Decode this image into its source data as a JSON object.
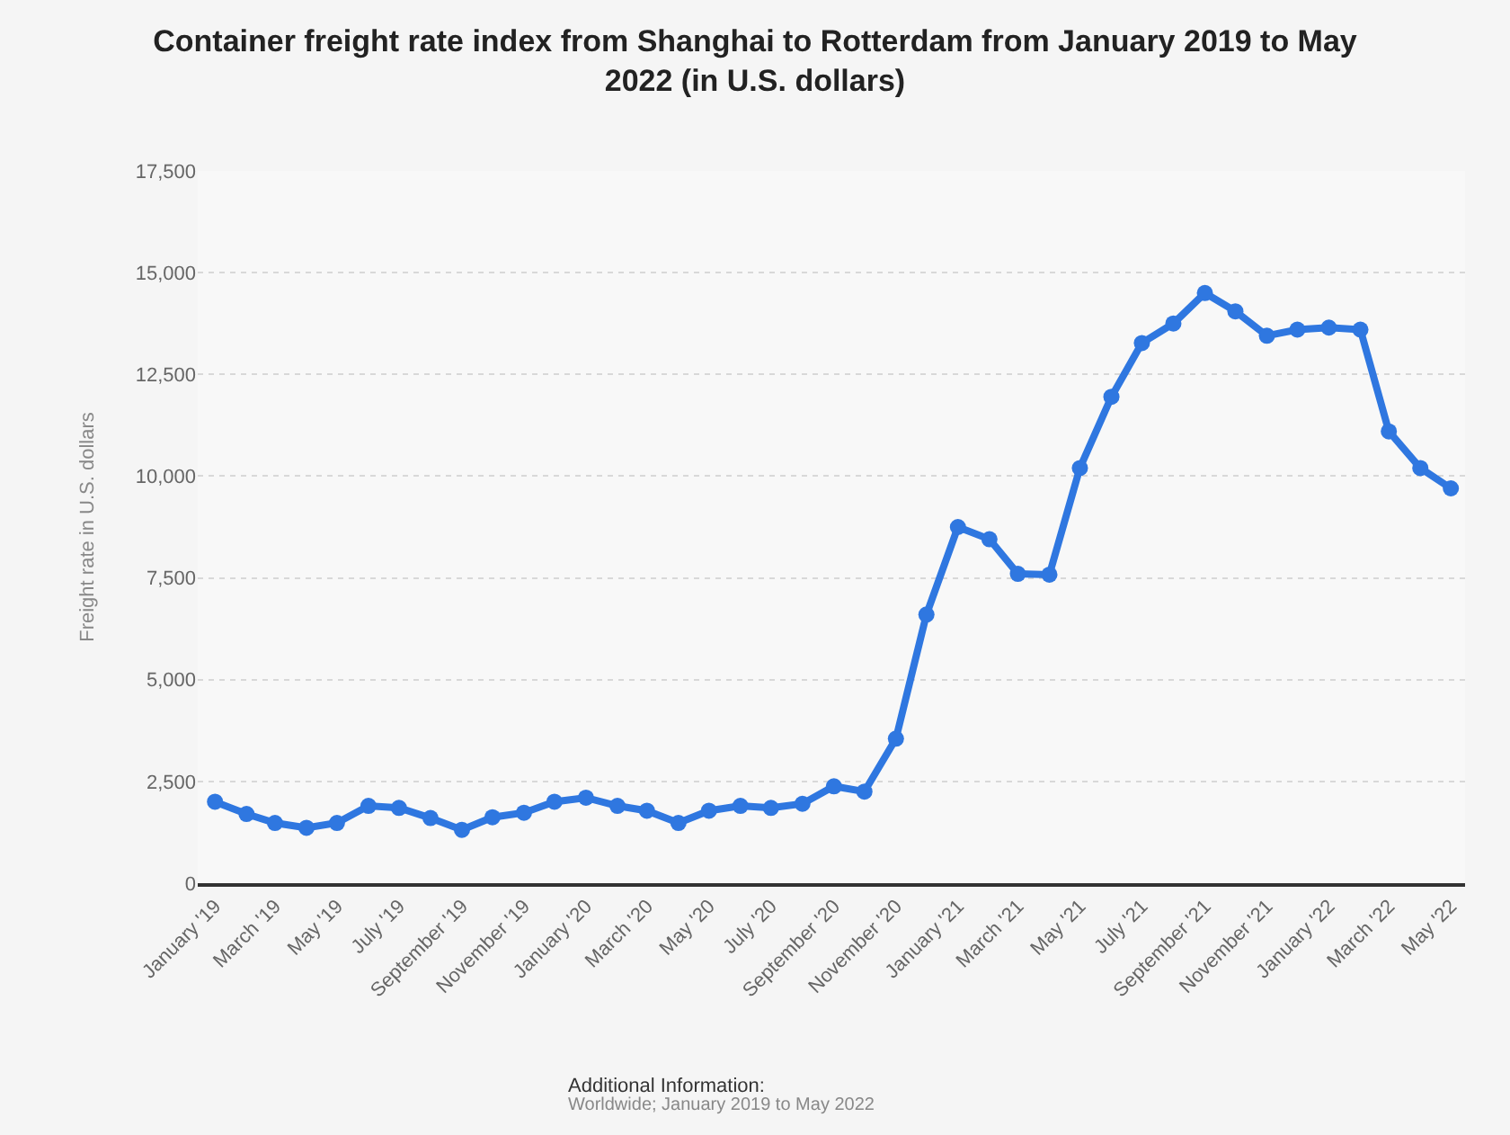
{
  "chart_data": {
    "type": "line",
    "title": "Container freight rate index from Shanghai to Rotterdam from January 2019 to May 2022 (in U.S. dollars)",
    "ylabel": "Freight rate in U.S. dollars",
    "x": [
      "2019-01",
      "2019-02",
      "2019-03",
      "2019-04",
      "2019-05",
      "2019-06",
      "2019-07",
      "2019-08",
      "2019-09",
      "2019-10",
      "2019-11",
      "2019-12",
      "2020-01",
      "2020-02",
      "2020-03",
      "2020-04",
      "2020-05",
      "2020-06",
      "2020-07",
      "2020-08",
      "2020-09",
      "2020-10",
      "2020-11",
      "2020-12",
      "2021-01",
      "2021-02",
      "2021-03",
      "2021-04",
      "2021-05",
      "2021-06",
      "2021-07",
      "2021-08",
      "2021-09",
      "2021-10",
      "2021-11",
      "2021-12",
      "2022-01",
      "2022-02",
      "2022-03",
      "2022-04",
      "2022-05"
    ],
    "series": [
      {
        "color": "#2f77e0",
        "values": [
          2000,
          1700,
          1480,
          1360,
          1480,
          1900,
          1850,
          1600,
          1310,
          1620,
          1730,
          2000,
          2100,
          1900,
          1780,
          1480,
          1780,
          1900,
          1850,
          1950,
          2380,
          2250,
          3550,
          6600,
          8750,
          8450,
          7600,
          7580,
          10200,
          11950,
          13270,
          13750,
          14500,
          14050,
          13450,
          13600,
          13650,
          13600,
          11100,
          10200,
          9700
        ]
      }
    ],
    "xlim": [
      "2018-12-15",
      "2022-05-15"
    ],
    "xticks": [
      {
        "value": "2019-01",
        "label": "January '19"
      },
      {
        "value": "2019-03",
        "label": "March '19"
      },
      {
        "value": "2019-05",
        "label": "May '19"
      },
      {
        "value": "2019-07",
        "label": "July '19"
      },
      {
        "value": "2019-09",
        "label": "September '19"
      },
      {
        "value": "2019-11",
        "label": "November '19"
      },
      {
        "value": "2020-01",
        "label": "January '20"
      },
      {
        "value": "2020-03",
        "label": "March '20"
      },
      {
        "value": "2020-05",
        "label": "May '20"
      },
      {
        "value": "2020-07",
        "label": "July '20"
      },
      {
        "value": "2020-09",
        "label": "September '20"
      },
      {
        "value": "2020-11",
        "label": "November '20"
      },
      {
        "value": "2021-01",
        "label": "January '21"
      },
      {
        "value": "2021-03",
        "label": "March '21"
      },
      {
        "value": "2021-05",
        "label": "May '21"
      },
      {
        "value": "2021-07",
        "label": "July '21"
      },
      {
        "value": "2021-09",
        "label": "September '21"
      },
      {
        "value": "2021-11",
        "label": "November '21"
      },
      {
        "value": "2022-01",
        "label": "January '22"
      },
      {
        "value": "2022-03",
        "label": "March '22"
      },
      {
        "value": "2022-05",
        "label": "May '22"
      }
    ],
    "ylim": [
      0,
      17500
    ],
    "yticks": [
      {
        "value": 0,
        "label": "0"
      },
      {
        "value": 2500,
        "label": "2,500"
      },
      {
        "value": 5000,
        "label": "5,000"
      },
      {
        "value": 7500,
        "label": "7,500"
      },
      {
        "value": 10000,
        "label": "10,000"
      },
      {
        "value": 12500,
        "label": "12,500"
      },
      {
        "value": 15000,
        "label": "15,000"
      },
      {
        "value": 17500,
        "label": "17,500"
      }
    ],
    "grid": "y",
    "marker": "circle",
    "line_style": "solid",
    "annotations": [
      "Additional Information:",
      "Worldwide; January 2019 to May 2022"
    ]
  }
}
